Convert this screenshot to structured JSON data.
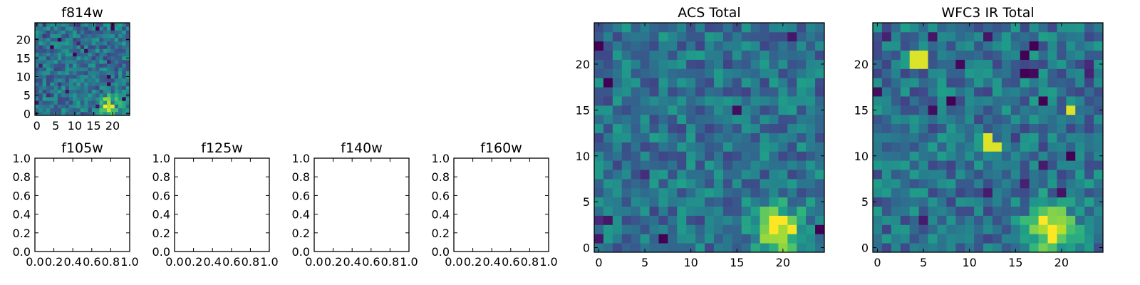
{
  "chart_data": [
    {
      "type": "heatmap",
      "title": "f814w",
      "colormap": "viridis",
      "grid_size": 25,
      "xticks": [
        "0",
        "5",
        "10",
        "15",
        "20"
      ],
      "yticks": [
        "0",
        "5",
        "10",
        "15",
        "20"
      ],
      "xlim": [
        -0.5,
        24.5
      ],
      "ylim": [
        -0.5,
        24.5
      ],
      "peak": {
        "x": 19,
        "y": 2
      }
    },
    {
      "type": "empty",
      "title": "f105w",
      "xticks": [
        "0.0",
        "0.2",
        "0.4",
        "0.6",
        "0.8",
        "1.0"
      ],
      "yticks": [
        "0.0",
        "0.2",
        "0.4",
        "0.6",
        "0.8",
        "1.0"
      ],
      "xlim": [
        0,
        1
      ],
      "ylim": [
        0,
        1
      ]
    },
    {
      "type": "empty",
      "title": "f125w",
      "xticks": [
        "0.0",
        "0.2",
        "0.4",
        "0.6",
        "0.8",
        "1.0"
      ],
      "yticks": [
        "0.0",
        "0.2",
        "0.4",
        "0.6",
        "0.8",
        "1.0"
      ],
      "xlim": [
        0,
        1
      ],
      "ylim": [
        0,
        1
      ]
    },
    {
      "type": "empty",
      "title": "f140w",
      "xticks": [
        "0.0",
        "0.2",
        "0.4",
        "0.6",
        "0.8",
        "1.0"
      ],
      "yticks": [
        "0.0",
        "0.2",
        "0.4",
        "0.6",
        "0.8",
        "1.0"
      ],
      "xlim": [
        0,
        1
      ],
      "ylim": [
        0,
        1
      ]
    },
    {
      "type": "empty",
      "title": "f160w",
      "xticks": [
        "0.0",
        "0.2",
        "0.4",
        "0.6",
        "0.8",
        "1.0"
      ],
      "yticks": [
        "0.0",
        "0.2",
        "0.4",
        "0.6",
        "0.8",
        "1.0"
      ],
      "xlim": [
        0,
        1
      ],
      "ylim": [
        0,
        1
      ]
    },
    {
      "type": "heatmap",
      "title": "ACS Total",
      "colormap": "viridis",
      "grid_size": 25,
      "xticks": [
        "0",
        "5",
        "10",
        "15",
        "20"
      ],
      "yticks": [
        "0",
        "5",
        "10",
        "15",
        "20"
      ],
      "xlim": [
        -0.5,
        24.5
      ],
      "ylim": [
        -0.5,
        24.5
      ],
      "peak": {
        "x": 19.5,
        "y": 2
      }
    },
    {
      "type": "heatmap",
      "title": "WFC3 IR Total",
      "colormap": "viridis",
      "grid_size": 25,
      "xticks": [
        "0",
        "5",
        "10",
        "15",
        "20"
      ],
      "yticks": [
        "0",
        "5",
        "10",
        "15",
        "20"
      ],
      "xlim": [
        -0.5,
        24.5
      ],
      "ylim": [
        -0.5,
        24.5
      ],
      "peak": {
        "x": 19,
        "y": 2
      },
      "hot_pixels": [
        {
          "x": 4,
          "y": 20
        },
        {
          "x": 5,
          "y": 20
        },
        {
          "x": 4,
          "y": 21
        },
        {
          "x": 5,
          "y": 21
        },
        {
          "x": 12,
          "y": 11
        },
        {
          "x": 12,
          "y": 12
        },
        {
          "x": 13,
          "y": 11
        },
        {
          "x": 21,
          "y": 15
        }
      ]
    }
  ]
}
